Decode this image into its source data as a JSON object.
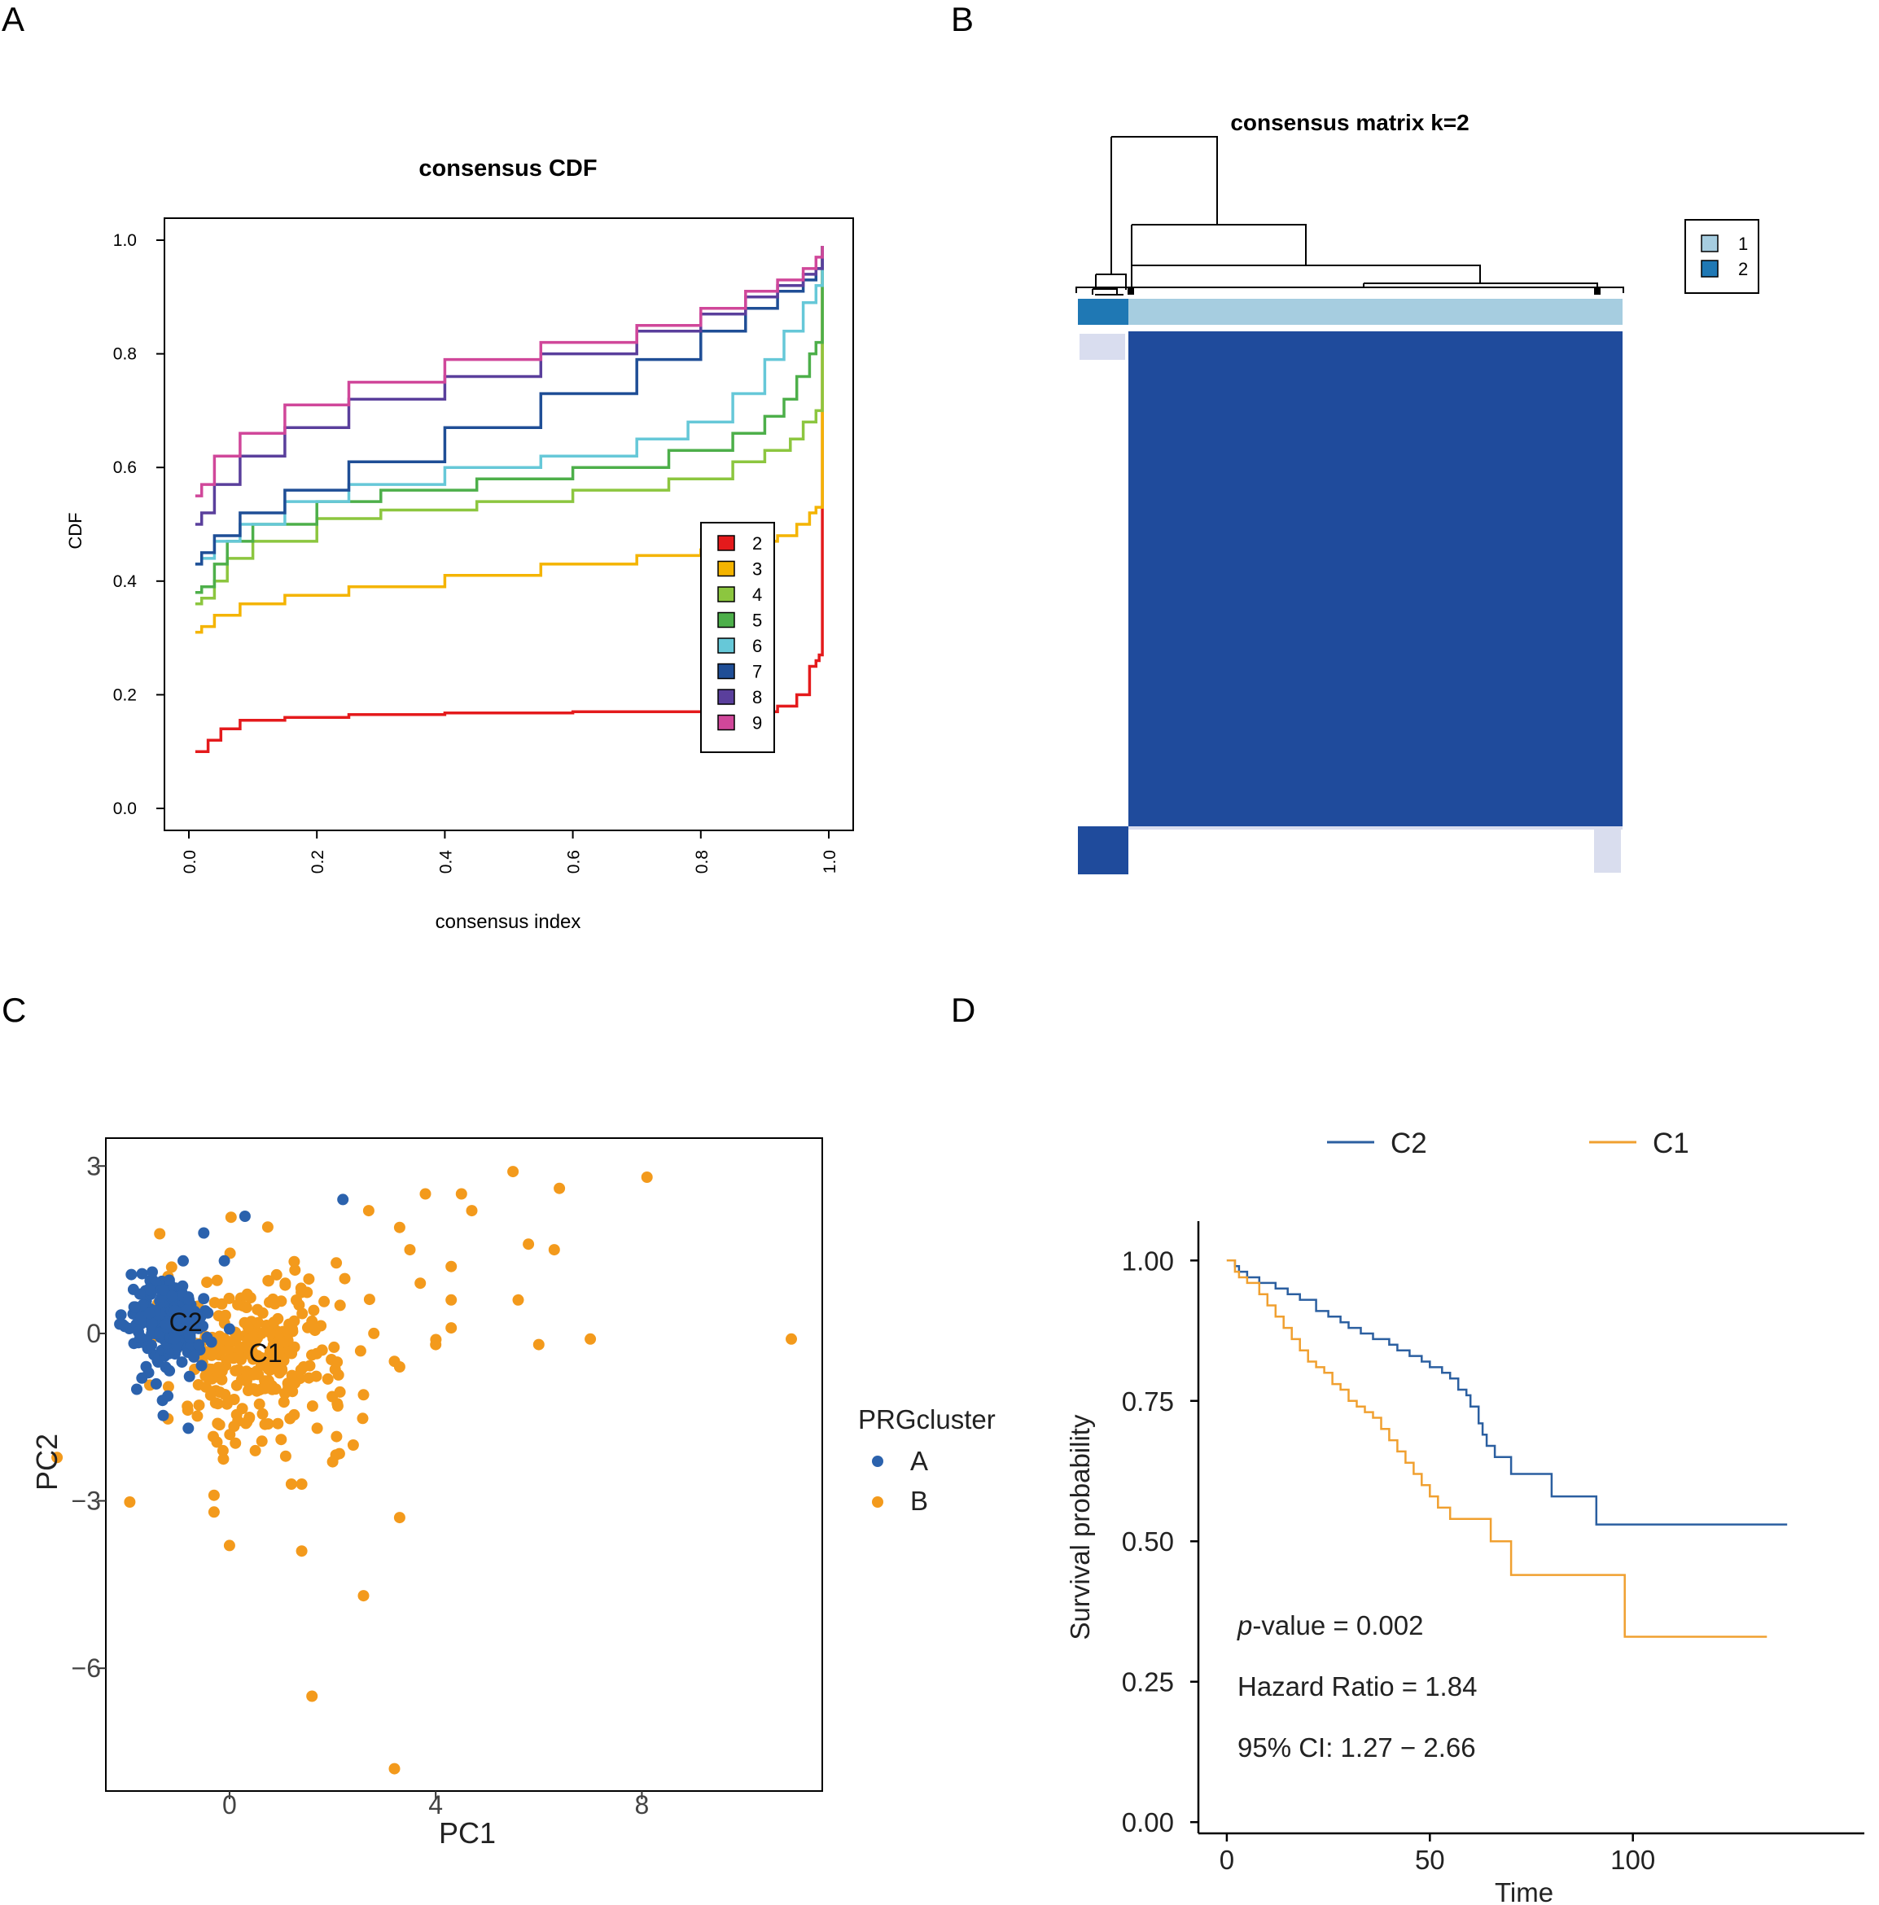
{
  "panels": {
    "A": {
      "letter": "A"
    },
    "B": {
      "letter": "B"
    },
    "C": {
      "letter": "C"
    },
    "D": {
      "letter": "D"
    }
  },
  "chart_data": [
    {
      "panel": "A",
      "type": "line",
      "title": "consensus CDF",
      "xlabel": "consensus index",
      "ylabel": "CDF",
      "xlim": [
        0,
        1
      ],
      "ylim": [
        0,
        1
      ],
      "xticks": [
        "0.0",
        "0.2",
        "0.4",
        "0.6",
        "0.8",
        "1.0"
      ],
      "yticks": [
        "0.0",
        "0.2",
        "0.4",
        "0.6",
        "0.8",
        "1.0"
      ],
      "legend_position": "right",
      "series": [
        {
          "name": "2",
          "color": "#e41a1c",
          "x": [
            0.01,
            0.02,
            0.03,
            0.05,
            0.08,
            0.15,
            0.25,
            0.4,
            0.6,
            0.8,
            0.92,
            0.95,
            0.97,
            0.98,
            0.985,
            0.99
          ],
          "y": [
            0.1,
            0.1,
            0.12,
            0.14,
            0.155,
            0.16,
            0.165,
            0.168,
            0.17,
            0.17,
            0.18,
            0.2,
            0.25,
            0.26,
            0.27,
            0.99
          ]
        },
        {
          "name": "3",
          "color": "#f4b400",
          "x": [
            0.01,
            0.02,
            0.04,
            0.08,
            0.15,
            0.25,
            0.4,
            0.55,
            0.7,
            0.8,
            0.88,
            0.92,
            0.95,
            0.97,
            0.98,
            0.99
          ],
          "y": [
            0.31,
            0.32,
            0.34,
            0.36,
            0.375,
            0.39,
            0.41,
            0.43,
            0.445,
            0.455,
            0.47,
            0.48,
            0.5,
            0.52,
            0.53,
            0.99
          ]
        },
        {
          "name": "4",
          "color": "#8cc63f",
          "x": [
            0.01,
            0.02,
            0.04,
            0.06,
            0.1,
            0.2,
            0.3,
            0.45,
            0.6,
            0.75,
            0.85,
            0.9,
            0.94,
            0.96,
            0.98,
            0.99
          ],
          "y": [
            0.36,
            0.37,
            0.4,
            0.44,
            0.47,
            0.51,
            0.525,
            0.54,
            0.56,
            0.58,
            0.61,
            0.63,
            0.65,
            0.68,
            0.7,
            0.99
          ]
        },
        {
          "name": "5",
          "color": "#4daf4a",
          "x": [
            0.01,
            0.02,
            0.04,
            0.06,
            0.1,
            0.2,
            0.3,
            0.45,
            0.6,
            0.75,
            0.85,
            0.9,
            0.93,
            0.95,
            0.97,
            0.98,
            0.99
          ],
          "y": [
            0.38,
            0.39,
            0.43,
            0.47,
            0.5,
            0.54,
            0.56,
            0.58,
            0.6,
            0.63,
            0.66,
            0.69,
            0.72,
            0.76,
            0.8,
            0.82,
            0.99
          ]
        },
        {
          "name": "6",
          "color": "#66c8d8",
          "x": [
            0.01,
            0.02,
            0.04,
            0.08,
            0.15,
            0.25,
            0.4,
            0.55,
            0.7,
            0.78,
            0.85,
            0.9,
            0.93,
            0.96,
            0.98,
            0.99
          ],
          "y": [
            0.43,
            0.44,
            0.47,
            0.5,
            0.54,
            0.57,
            0.6,
            0.62,
            0.65,
            0.68,
            0.73,
            0.79,
            0.84,
            0.89,
            0.92,
            0.99
          ]
        },
        {
          "name": "7",
          "color": "#1f4e96",
          "x": [
            0.01,
            0.02,
            0.04,
            0.08,
            0.15,
            0.25,
            0.4,
            0.55,
            0.7,
            0.8,
            0.87,
            0.92,
            0.96,
            0.98,
            0.99
          ],
          "y": [
            0.43,
            0.45,
            0.48,
            0.52,
            0.56,
            0.61,
            0.67,
            0.73,
            0.79,
            0.84,
            0.88,
            0.91,
            0.93,
            0.95,
            0.99
          ]
        },
        {
          "name": "8",
          "color": "#5a3f9c",
          "x": [
            0.01,
            0.02,
            0.04,
            0.08,
            0.15,
            0.25,
            0.4,
            0.55,
            0.7,
            0.8,
            0.87,
            0.92,
            0.96,
            0.98,
            0.99
          ],
          "y": [
            0.5,
            0.52,
            0.57,
            0.62,
            0.67,
            0.72,
            0.76,
            0.8,
            0.84,
            0.87,
            0.9,
            0.92,
            0.94,
            0.95,
            0.99
          ]
        },
        {
          "name": "9",
          "color": "#d0479a",
          "x": [
            0.01,
            0.02,
            0.04,
            0.08,
            0.15,
            0.25,
            0.4,
            0.55,
            0.7,
            0.8,
            0.87,
            0.92,
            0.96,
            0.98,
            0.99
          ],
          "y": [
            0.55,
            0.57,
            0.62,
            0.66,
            0.71,
            0.75,
            0.79,
            0.82,
            0.85,
            0.88,
            0.91,
            0.93,
            0.95,
            0.97,
            0.99
          ]
        }
      ]
    },
    {
      "panel": "B",
      "type": "heatmap",
      "title": "consensus matrix k=2",
      "legend": [
        {
          "label": "1",
          "color": "#a6cde0"
        },
        {
          "label": "2",
          "color": "#1f78b4"
        }
      ],
      "cluster_fraction": {
        "cluster_1": 0.91,
        "cluster_2": 0.09
      },
      "matrix_color": "#1f4b9c",
      "background_color": "#ffffff"
    },
    {
      "panel": "C",
      "type": "scatter",
      "xlabel": "PC1",
      "ylabel": "PC2",
      "xlim": [
        -2.4,
        11.5
      ],
      "ylim": [
        -8.2,
        3.5
      ],
      "xticks": [
        0,
        4,
        8
      ],
      "yticks": [
        3,
        0,
        -3,
        -6
      ],
      "ytick_labels": [
        "3",
        "0",
        "−3",
        "−6"
      ],
      "legend_title": "PRGcluster",
      "legend": [
        {
          "label": "A",
          "color": "#2b62ad"
        },
        {
          "label": "B",
          "color": "#f39a1c"
        }
      ],
      "centroid_labels": [
        {
          "text": "C2",
          "x": -0.85,
          "y": 0.2
        },
        {
          "text": "C1",
          "x": 0.7,
          "y": -0.35
        }
      ],
      "series": [
        {
          "name": "A",
          "color": "#2b62ad",
          "n": 230,
          "center": [
            -1.2,
            0.15
          ],
          "spread": [
            0.38,
            0.4
          ],
          "extra_points": [
            [
              0.3,
              2.1
            ],
            [
              2.2,
              2.4
            ],
            [
              -0.5,
              1.8
            ],
            [
              -1.8,
              -1.0
            ],
            [
              -0.8,
              -1.7
            ],
            [
              -1.5,
              1.1
            ],
            [
              -0.1,
              1.3
            ],
            [
              -1.3,
              -1.2
            ],
            [
              -0.9,
              1.3
            ],
            [
              -1.7,
              -0.8
            ]
          ]
        },
        {
          "name": "B",
          "color": "#f39a1c",
          "n": 280,
          "center": [
            0.5,
            -0.4
          ],
          "spread": [
            0.9,
            0.75
          ],
          "extra_points": [
            [
              5.5,
              2.9
            ],
            [
              8.1,
              2.8
            ],
            [
              6.4,
              2.6
            ],
            [
              4.5,
              2.5
            ],
            [
              3.8,
              2.5
            ],
            [
              2.7,
              2.2
            ],
            [
              4.7,
              2.2
            ],
            [
              3.3,
              1.9
            ],
            [
              5.8,
              1.6
            ],
            [
              6.3,
              1.5
            ],
            [
              3.5,
              1.5
            ],
            [
              4.3,
              1.2
            ],
            [
              3.7,
              0.9
            ],
            [
              4.3,
              0.6
            ],
            [
              5.6,
              0.6
            ],
            [
              4.3,
              0.1
            ],
            [
              2.8,
              0.0
            ],
            [
              4.0,
              -0.2
            ],
            [
              6.0,
              -0.2
            ],
            [
              7.0,
              -0.1
            ],
            [
              3.2,
              -0.5
            ],
            [
              3.3,
              -0.6
            ],
            [
              10.9,
              -0.1
            ],
            [
              2.6,
              -1.1
            ],
            [
              2.1,
              -1.3
            ],
            [
              2.4,
              -2.0
            ],
            [
              2.0,
              -2.3
            ],
            [
              1.2,
              -2.7
            ],
            [
              1.4,
              -2.7
            ],
            [
              -0.3,
              -2.9
            ],
            [
              -0.3,
              -3.2
            ],
            [
              3.3,
              -3.3
            ],
            [
              0.0,
              -3.8
            ],
            [
              1.4,
              -3.9
            ],
            [
              2.6,
              -4.7
            ],
            [
              1.6,
              -6.5
            ],
            [
              3.2,
              -7.8
            ],
            [
              1.0,
              -1.9
            ],
            [
              0.5,
              -2.1
            ],
            [
              1.7,
              -1.7
            ]
          ]
        }
      ]
    },
    {
      "panel": "D",
      "type": "line",
      "subtype": "kaplan-meier",
      "xlabel": "Time",
      "ylabel": "Survival probability",
      "xlim": [
        -7,
        157
      ],
      "ylim": [
        -0.02,
        1.07
      ],
      "xticks": [
        0,
        50,
        100
      ],
      "yticks": [
        0,
        0.25,
        0.5,
        0.75,
        1.0
      ],
      "ytick_labels": [
        "0.00",
        "0.25",
        "0.50",
        "0.75",
        "1.00"
      ],
      "legend_position": "top",
      "annotations": {
        "p_label": "p",
        "p_value": "-value = 0.002",
        "hazard_ratio": "Hazard Ratio = 1.84",
        "ci": "95% CI: 1.27 − 2.66"
      },
      "series": [
        {
          "name": "C2",
          "color": "#2b5fa0",
          "x": [
            0,
            2,
            3,
            5,
            8,
            12,
            15,
            18,
            22,
            25,
            28,
            30,
            33,
            36,
            40,
            42,
            45,
            48,
            50,
            53,
            55,
            57,
            59,
            60,
            62,
            63,
            64,
            66,
            70,
            75,
            80,
            88,
            91,
            138
          ],
          "y": [
            1.0,
            0.99,
            0.98,
            0.97,
            0.96,
            0.95,
            0.94,
            0.93,
            0.91,
            0.9,
            0.89,
            0.88,
            0.87,
            0.86,
            0.85,
            0.84,
            0.83,
            0.82,
            0.81,
            0.8,
            0.79,
            0.77,
            0.76,
            0.74,
            0.71,
            0.69,
            0.67,
            0.65,
            0.62,
            0.62,
            0.58,
            0.58,
            0.53,
            0.53
          ]
        },
        {
          "name": "C1",
          "color": "#f0a030",
          "x": [
            0,
            2,
            3,
            5,
            8,
            10,
            12,
            14,
            16,
            18,
            20,
            22,
            24,
            26,
            28,
            30,
            32,
            34,
            36,
            38,
            40,
            42,
            44,
            46,
            48,
            50,
            52,
            55,
            60,
            62,
            65,
            68,
            70,
            75,
            80,
            90,
            98,
            133
          ],
          "y": [
            1.0,
            0.98,
            0.97,
            0.96,
            0.94,
            0.92,
            0.9,
            0.88,
            0.86,
            0.84,
            0.82,
            0.81,
            0.8,
            0.78,
            0.77,
            0.75,
            0.74,
            0.73,
            0.72,
            0.7,
            0.68,
            0.66,
            0.64,
            0.62,
            0.6,
            0.58,
            0.56,
            0.54,
            0.54,
            0.54,
            0.5,
            0.5,
            0.44,
            0.44,
            0.44,
            0.44,
            0.33,
            0.33
          ]
        }
      ]
    }
  ]
}
